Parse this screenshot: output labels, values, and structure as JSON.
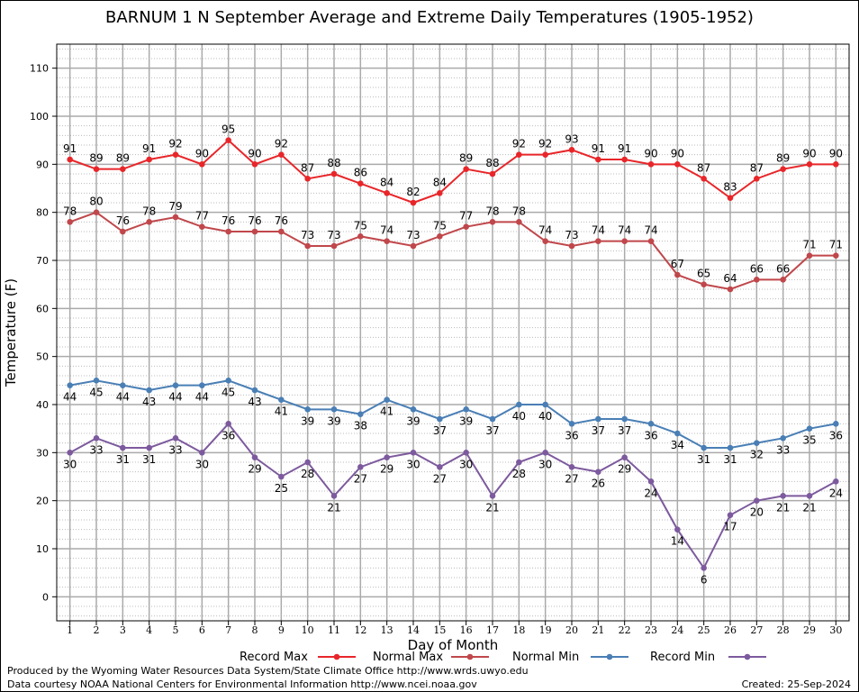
{
  "chart_data": {
    "type": "line",
    "title": "BARNUM 1 N September Average and Extreme Daily Temperatures (1905-1952)",
    "xlabel": "Day of Month",
    "ylabel": "Temperature (F)",
    "ylim": [
      -5,
      115
    ],
    "yticks": [
      0,
      10,
      20,
      30,
      40,
      50,
      60,
      70,
      80,
      90,
      100,
      110
    ],
    "grid": true,
    "legend_position": "bottom",
    "x": [
      1,
      2,
      3,
      4,
      5,
      6,
      7,
      8,
      9,
      10,
      11,
      12,
      13,
      14,
      15,
      16,
      17,
      18,
      19,
      20,
      21,
      22,
      23,
      24,
      25,
      26,
      27,
      28,
      29,
      30
    ],
    "series": [
      {
        "name": "Record Max",
        "color": "#e8262a",
        "label_position": "above",
        "values": [
          91,
          89,
          89,
          91,
          92,
          90,
          95,
          90,
          92,
          87,
          88,
          86,
          84,
          82,
          84,
          89,
          88,
          92,
          92,
          93,
          91,
          91,
          90,
          90,
          87,
          83,
          87,
          89,
          90,
          90
        ]
      },
      {
        "name": "Normal Max",
        "color": "#c0474b",
        "label_position": "above",
        "values": [
          78,
          80,
          76,
          78,
          79,
          77,
          76,
          76,
          76,
          73,
          73,
          75,
          74,
          73,
          75,
          77,
          78,
          78,
          74,
          73,
          74,
          74,
          74,
          67,
          65,
          64,
          66,
          66,
          71,
          71
        ]
      },
      {
        "name": "Normal Min",
        "color": "#4a7fb5",
        "label_position": "below",
        "values": [
          44,
          45,
          44,
          43,
          44,
          44,
          45,
          43,
          41,
          39,
          39,
          38,
          41,
          39,
          37,
          39,
          37,
          40,
          40,
          36,
          37,
          37,
          36,
          34,
          31,
          31,
          32,
          33,
          35,
          36
        ]
      },
      {
        "name": "Record Min",
        "color": "#7d5a9e",
        "label_position": "below",
        "values": [
          30,
          33,
          31,
          31,
          33,
          30,
          36,
          29,
          25,
          28,
          21,
          27,
          29,
          30,
          27,
          30,
          21,
          28,
          30,
          27,
          26,
          29,
          24,
          14,
          6,
          17,
          20,
          21,
          21,
          24
        ]
      }
    ]
  },
  "footer": {
    "credit_line_1": "Produced by the Wyoming Water Resources Data System/State Climate Office http://www.wrds.uwyo.edu",
    "credit_line_2": "Data courtesy NOAA National Centers for Environmental Information http://www.ncei.noaa.gov",
    "created": "Created:  25-Sep-2024"
  }
}
